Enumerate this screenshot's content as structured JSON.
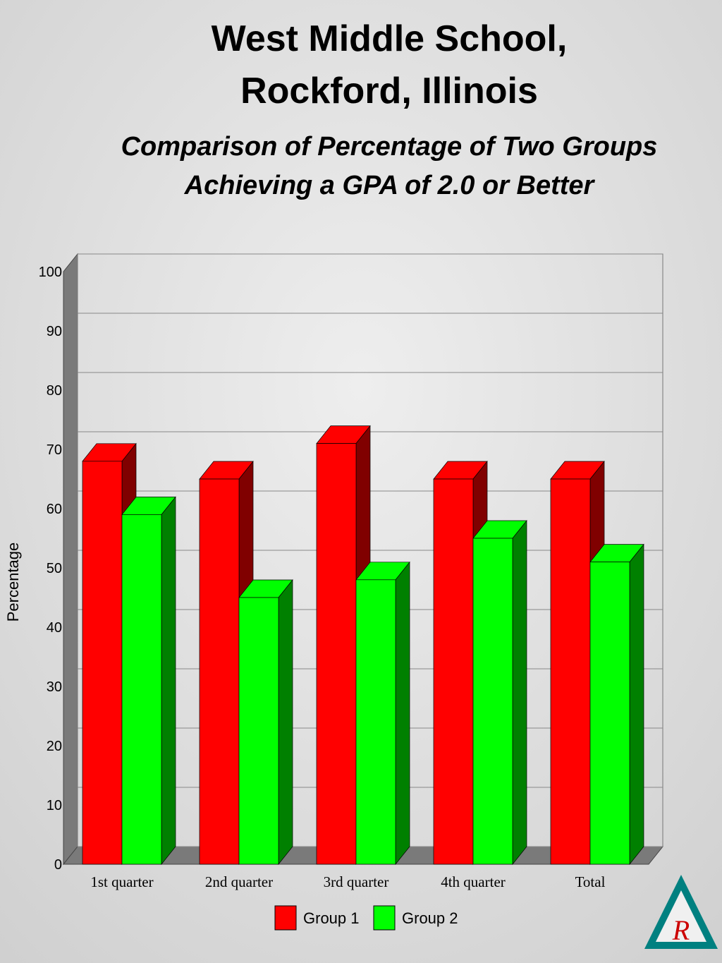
{
  "chart_data": {
    "type": "bar3d",
    "title": "West Middle School, Rockford, Illinois",
    "subtitle": "Comparison of Percentage of Two Groups Achieving a GPA of 2.0 or Better",
    "y_label": "Percentage",
    "categories": [
      "1st quarter",
      "2nd quarter",
      "3rd quarter",
      "4th quarter",
      "Total"
    ],
    "series": [
      {
        "name": "Group 1",
        "color": "#ff0000",
        "side": "#800000",
        "values": [
          68,
          65,
          71,
          65,
          65
        ]
      },
      {
        "name": "Group 2",
        "color": "#00ff00",
        "side": "#008000",
        "values": [
          59,
          45,
          48,
          55,
          51
        ]
      }
    ],
    "ylim": [
      0,
      100
    ],
    "yticks": [
      0,
      10,
      20,
      30,
      40,
      50,
      60,
      70,
      80,
      90,
      100
    ],
    "grid": true,
    "legend": "bottom"
  },
  "logo": "R"
}
